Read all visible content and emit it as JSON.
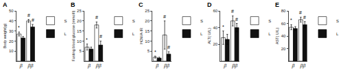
{
  "chart_data": [
    {
      "type": "bar",
      "title": "A",
      "ylabel": "Body weight(g)",
      "categories": [
        "β",
        "ββ"
      ],
      "series": [
        {
          "name": "S",
          "color": "#ffffff",
          "values": [
            27,
            40
          ],
          "errors": [
            2.0,
            1.5
          ]
        },
        {
          "name": "L",
          "color": "#111111",
          "values": [
            23,
            34
          ],
          "errors": [
            1.5,
            2.5
          ]
        }
      ],
      "ylim": [
        0,
        50
      ],
      "yticks": [
        10,
        20,
        30,
        40,
        50
      ],
      "grid": false,
      "legend": "upper right",
      "annotations": [
        {
          "text": "*",
          "category": "β",
          "series": "S"
        },
        {
          "text": "#",
          "category": "ββ",
          "series": "S"
        },
        {
          "text": "#",
          "category": "ββ",
          "series": "L"
        }
      ]
    },
    {
      "type": "bar",
      "title": "B",
      "ylabel": "Fasting blood glucose (mmol/l)",
      "categories": [
        "β",
        "ββ"
      ],
      "series": [
        {
          "name": "S",
          "color": "#ffffff",
          "values": [
            7,
            18
          ],
          "errors": [
            1.5,
            1.5
          ]
        },
        {
          "name": "L",
          "color": "#111111",
          "values": [
            6,
            8
          ],
          "errors": [
            1.0,
            2.0
          ]
        }
      ],
      "ylim": [
        0,
        25
      ],
      "yticks": [
        5,
        10,
        15,
        20,
        25
      ],
      "grid": false,
      "legend": "upper right",
      "annotations": [
        {
          "text": "*",
          "category": "β",
          "series": "S"
        },
        {
          "text": "#",
          "category": "ββ",
          "series": "S"
        },
        {
          "text": "#",
          "category": "ββ",
          "series": "L"
        }
      ]
    },
    {
      "type": "bar",
      "title": "C",
      "ylabel": "HOMA-IR",
      "categories": [
        "β",
        "ββ"
      ],
      "series": [
        {
          "name": "S",
          "color": "#ffffff",
          "values": [
            2,
            13
          ],
          "errors": [
            0.5,
            7.0
          ]
        },
        {
          "name": "L",
          "color": "#111111",
          "values": [
            1.5,
            3.5
          ],
          "errors": [
            0.5,
            1.2
          ]
        }
      ],
      "ylim": [
        0,
        25
      ],
      "yticks": [
        5,
        10,
        15,
        20,
        25
      ],
      "grid": false,
      "legend": "upper right",
      "annotations": [
        {
          "text": "*",
          "category": "β",
          "series": "S"
        },
        {
          "text": "#",
          "category": "ββ",
          "series": "S"
        },
        {
          "text": "#",
          "category": "ββ",
          "series": "L"
        }
      ]
    },
    {
      "type": "bar",
      "title": "D",
      "ylabel": "ALT( U/L)",
      "categories": [
        "β",
        "ββ"
      ],
      "series": [
        {
          "name": "S",
          "color": "#ffffff",
          "values": [
            28,
            48
          ],
          "errors": [
            8,
            6
          ]
        },
        {
          "name": "L",
          "color": "#111111",
          "values": [
            26,
            40
          ],
          "errors": [
            6,
            5
          ]
        }
      ],
      "ylim": [
        0,
        60
      ],
      "yticks": [
        20,
        40,
        60
      ],
      "grid": false,
      "legend": "upper right",
      "annotations": [
        {
          "text": "*",
          "category": "β",
          "series": "S"
        },
        {
          "text": "#",
          "category": "ββ",
          "series": "S"
        },
        {
          "text": "#",
          "category": "ββ",
          "series": "L"
        }
      ]
    },
    {
      "type": "bar",
      "title": "E",
      "ylabel": "AST( U/L)",
      "categories": [
        "β",
        "ββ"
      ],
      "series": [
        {
          "name": "S",
          "color": "#ffffff",
          "values": [
            54,
            66
          ],
          "errors": [
            4,
            4
          ]
        },
        {
          "name": "L",
          "color": "#111111",
          "values": [
            52,
            58
          ],
          "errors": [
            3,
            5
          ]
        }
      ],
      "ylim": [
        0,
        80
      ],
      "yticks": [
        20,
        40,
        60,
        80
      ],
      "grid": false,
      "legend": "upper right",
      "annotations": [
        {
          "text": "*",
          "category": "β",
          "series": "S"
        },
        {
          "text": "#",
          "category": "ββ",
          "series": "S"
        },
        {
          "text": "#",
          "category": "ββ",
          "series": "L"
        }
      ]
    }
  ]
}
